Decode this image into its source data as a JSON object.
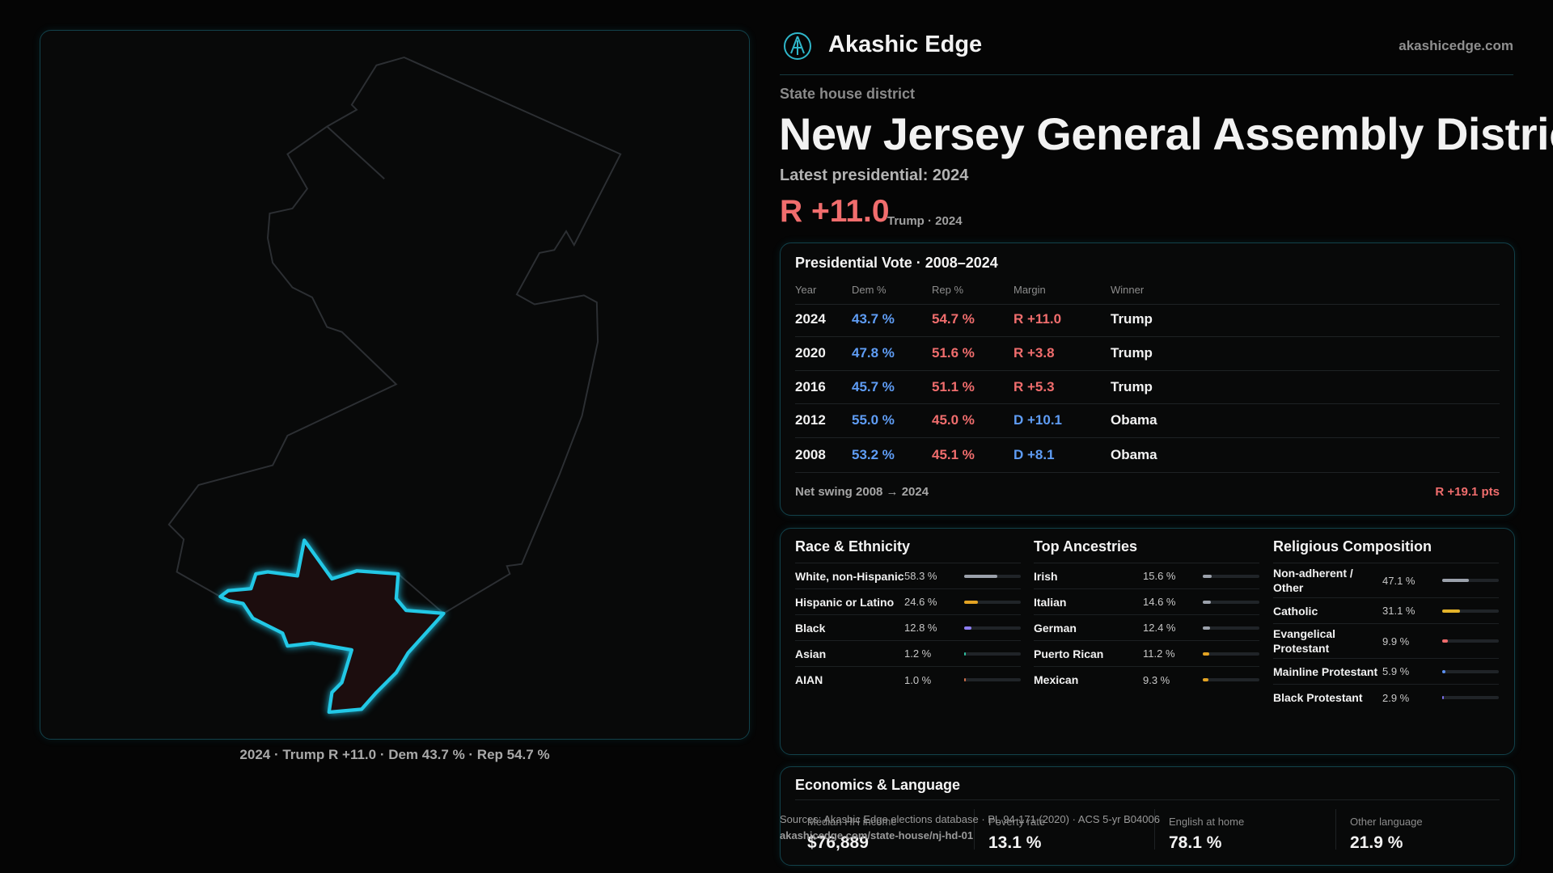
{
  "header": {
    "brand": "Akashic Edge",
    "site": "akashicedge.com"
  },
  "district": {
    "kicker": "State house district",
    "title": "New Jersey General Assembly District",
    "latest": "Latest presidential: 2024",
    "margin": "R +11.0",
    "margin_note": "Trump · 2024"
  },
  "map": {
    "caption": "2024 · Trump R +11.0 · Dem 43.7 % · Rep 54.7 %"
  },
  "vote_table": {
    "title": "Presidential Vote · 2008–2024",
    "columns": [
      "Year",
      "Dem %",
      "Rep %",
      "Margin",
      "Winner"
    ],
    "rows": [
      [
        "2024",
        "43.7 %",
        "54.7 %",
        "R +11.0",
        "Trump"
      ],
      [
        "2020",
        "47.8 %",
        "51.6 %",
        "R +3.8",
        "Trump"
      ],
      [
        "2016",
        "45.7 %",
        "51.1 %",
        "R +5.3",
        "Trump"
      ],
      [
        "2012",
        "55.0 %",
        "45.0 %",
        "D +10.1",
        "Obama"
      ],
      [
        "2008",
        "53.2 %",
        "45.1 %",
        "D +8.1",
        "Obama"
      ]
    ],
    "footer_label": "Net swing 2008 → 2024",
    "footer_value": "R +19.1 pts"
  },
  "demographics": [
    {
      "title": "Race & Ethnicity",
      "items": [
        {
          "label": "White, non-Hispanic",
          "value": 58.3,
          "value_label": "58.3 %",
          "color": "#9ba1ab"
        },
        {
          "label": "Hispanic or Latino",
          "value": 24.6,
          "value_label": "24.6 %",
          "color": "#e3a323"
        },
        {
          "label": "Black",
          "value": 12.8,
          "value_label": "12.8 %",
          "color": "#8d7ef2"
        },
        {
          "label": "Asian",
          "value": 1.2,
          "value_label": "1.2 %",
          "color": "#2fbfa0"
        },
        {
          "label": "AIAN",
          "value": 1.0,
          "value_label": "1.0 %",
          "color": "#d0704a"
        }
      ]
    },
    {
      "title": "Top Ancestries",
      "items": [
        {
          "label": "Irish",
          "value": 15.6,
          "value_label": "15.6 %",
          "color": "#9ba1ab"
        },
        {
          "label": "Italian",
          "value": 14.6,
          "value_label": "14.6 %",
          "color": "#9ba1ab"
        },
        {
          "label": "German",
          "value": 12.4,
          "value_label": "12.4 %",
          "color": "#9ba1ab"
        },
        {
          "label": "Puerto Rican",
          "value": 11.2,
          "value_label": "11.2 %",
          "color": "#e3a323"
        },
        {
          "label": "Mexican",
          "value": 9.3,
          "value_label": "9.3 %",
          "color": "#e3a323"
        }
      ]
    },
    {
      "title": "Religious Composition",
      "items": [
        {
          "label": "Non-adherent / Other",
          "value": 47.1,
          "value_label": "47.1 %",
          "color": "#9ba1ab"
        },
        {
          "label": "Catholic",
          "value": 31.1,
          "value_label": "31.1 %",
          "color": "#e3b32a"
        },
        {
          "label": "Evangelical Protestant",
          "value": 9.9,
          "value_label": "9.9 %",
          "color": "#ef6b6b"
        },
        {
          "label": "Mainline Protestant",
          "value": 5.9,
          "value_label": "5.9 %",
          "color": "#5b8ff0"
        },
        {
          "label": "Black Protestant",
          "value": 2.9,
          "value_label": "2.9 %",
          "color": "#7b6ee8"
        }
      ]
    }
  ],
  "economics": {
    "title": "Economics & Language",
    "items": [
      {
        "label": "Median HH income",
        "value": "$76,889"
      },
      {
        "label": "Poverty rate",
        "value": "13.1 %"
      },
      {
        "label": "English at home",
        "value": "78.1 %"
      },
      {
        "label": "Other language",
        "value": "21.9 %"
      }
    ]
  },
  "sources": {
    "line1": "Sources: Akashic Edge elections database · PL 94-171 (2020) · ACS 5-yr B04006",
    "line2": "akashicedge.com/state-house/nj-hd-01"
  }
}
